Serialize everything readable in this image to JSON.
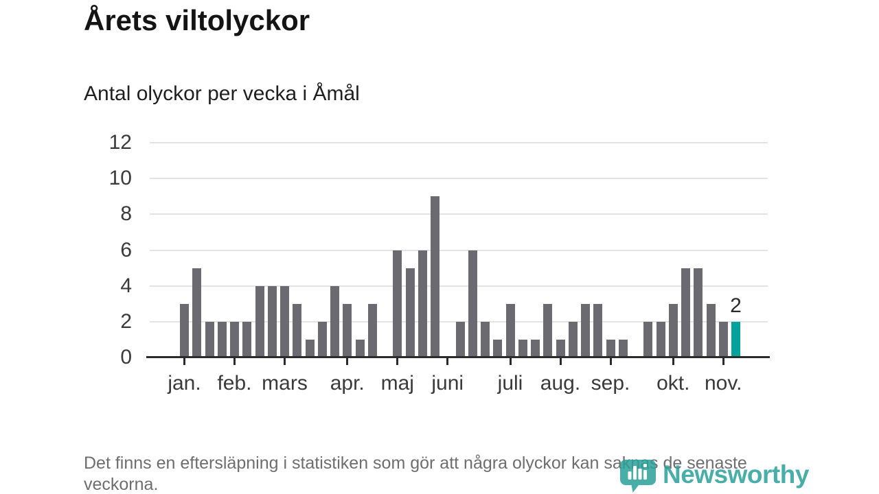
{
  "chart_data": {
    "type": "bar",
    "title": "Årets viltolyckor",
    "subtitle": "Antal olyckor per vecka i Åmål",
    "x_unit": "vecka",
    "values": [
      3,
      5,
      2,
      2,
      2,
      2,
      4,
      4,
      4,
      3,
      1,
      2,
      4,
      3,
      1,
      3,
      0,
      6,
      5,
      6,
      9,
      0,
      2,
      6,
      2,
      1,
      3,
      1,
      1,
      3,
      1,
      2,
      3,
      3,
      1,
      1,
      0,
      2,
      2,
      3,
      5,
      5,
      3,
      2,
      2
    ],
    "months": [
      {
        "label": "jan.",
        "start_week": 0
      },
      {
        "label": "feb.",
        "start_week": 4
      },
      {
        "label": "mars",
        "start_week": 8
      },
      {
        "label": "apr.",
        "start_week": 13
      },
      {
        "label": "maj",
        "start_week": 17
      },
      {
        "label": "juni",
        "start_week": 21
      },
      {
        "label": "juli",
        "start_week": 26
      },
      {
        "label": "aug.",
        "start_week": 30
      },
      {
        "label": "sep.",
        "start_week": 34
      },
      {
        "label": "okt.",
        "start_week": 39
      },
      {
        "label": "nov.",
        "start_week": 43
      }
    ],
    "y_ticks": [
      0,
      2,
      4,
      6,
      8,
      10,
      12
    ],
    "ylim": [
      0,
      12
    ],
    "grid": "horizontal",
    "legend": "none",
    "last_bar": {
      "value": 2,
      "label": "2",
      "highlighted": true
    },
    "colors": {
      "bar": "#6a6a70",
      "highlight": "#00a29c",
      "gridline": "#e3e3e3",
      "axis": "#2b2b2b",
      "axis_text": "#3a3a3a"
    }
  },
  "footnote": "Det finns en eftersläpning i statistiken som gör att några olyckor kan saknas de senaste veckorna.",
  "logo": {
    "wordmark": "Newsworthy",
    "color": "#2aa09a",
    "icon": "speech-bubble-bar-chart-icon"
  }
}
